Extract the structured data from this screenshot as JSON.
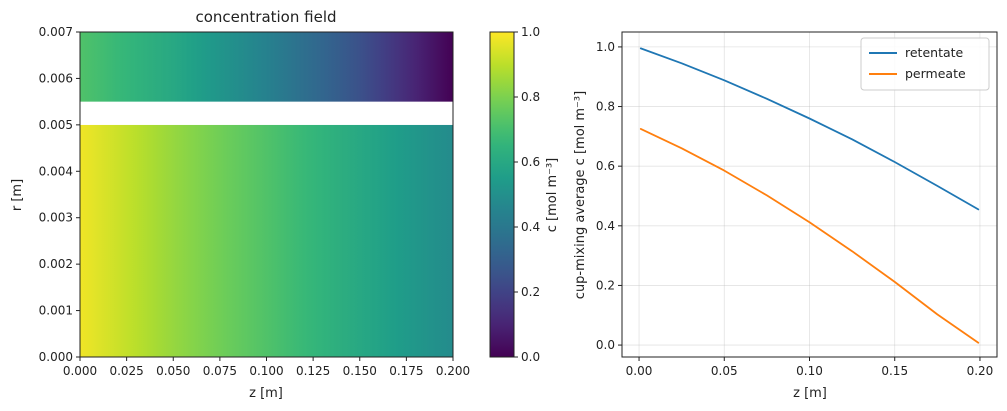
{
  "chart_data": [
    {
      "type": "heatmap",
      "title": "concentration field",
      "xlabel": "z [m]",
      "ylabel": "r [m]",
      "xlim": [
        0.0,
        0.2
      ],
      "ylim": [
        0.0,
        0.007
      ],
      "x_ticks": [
        "0.000",
        "0.025",
        "0.050",
        "0.075",
        "0.100",
        "0.125",
        "0.150",
        "0.175",
        "0.200"
      ],
      "y_ticks": [
        "0.000",
        "0.001",
        "0.002",
        "0.003",
        "0.004",
        "0.005",
        "0.006",
        "0.007"
      ],
      "colormap": "viridis",
      "colorbar": {
        "label": "c [mol m⁻³]",
        "range": [
          0.0,
          1.0
        ],
        "ticks": [
          "0.0",
          "0.2",
          "0.4",
          "0.6",
          "0.8",
          "1.0"
        ]
      },
      "regions": [
        {
          "name": "lower",
          "r_range": [
            0.0,
            0.005
          ],
          "z": [
            0.0,
            0.05,
            0.1,
            0.15,
            0.2
          ],
          "values": [
            0.98,
            0.84,
            0.72,
            0.6,
            0.48
          ]
        },
        {
          "name": "gap",
          "r_range": [
            0.005,
            0.0055
          ],
          "blank": true
        },
        {
          "name": "upper",
          "r_range": [
            0.0055,
            0.007
          ],
          "z": [
            0.0,
            0.05,
            0.1,
            0.15,
            0.2
          ],
          "values": [
            0.72,
            0.6,
            0.44,
            0.25,
            0.0
          ]
        }
      ]
    },
    {
      "type": "line",
      "xlabel": "z [m]",
      "ylabel": "cup-mixing average c [mol m⁻³]",
      "xlim": [
        -0.01,
        0.21
      ],
      "ylim": [
        -0.04,
        1.05
      ],
      "x_ticks": [
        "0.00",
        "0.05",
        "0.10",
        "0.15",
        "0.20"
      ],
      "y_ticks": [
        "0.0",
        "0.2",
        "0.4",
        "0.6",
        "0.8",
        "1.0"
      ],
      "grid": true,
      "legend_position": "top-right",
      "series": [
        {
          "name": "retentate",
          "color": "#1f77b4",
          "x": [
            0.001,
            0.025,
            0.05,
            0.075,
            0.1,
            0.125,
            0.15,
            0.175,
            0.199
          ],
          "y": [
            0.995,
            0.945,
            0.888,
            0.826,
            0.76,
            0.69,
            0.614,
            0.534,
            0.455
          ]
        },
        {
          "name": "permeate",
          "color": "#ff7f0e",
          "x": [
            0.001,
            0.025,
            0.05,
            0.075,
            0.1,
            0.125,
            0.15,
            0.175,
            0.199
          ],
          "y": [
            0.725,
            0.66,
            0.585,
            0.502,
            0.412,
            0.315,
            0.212,
            0.103,
            0.008
          ]
        }
      ]
    }
  ]
}
